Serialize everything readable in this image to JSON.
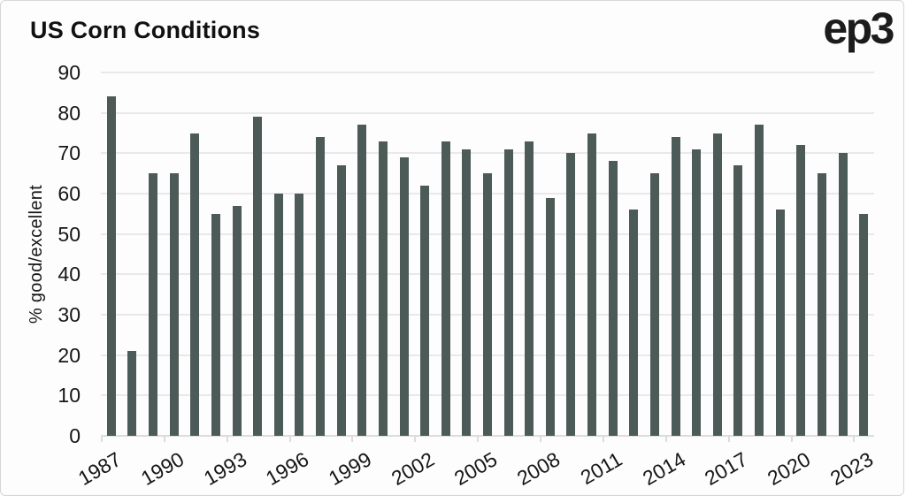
{
  "header": {
    "title": "US Corn Conditions",
    "logo_text": "ep3"
  },
  "chart_data": {
    "type": "bar",
    "title": "US Corn Conditions",
    "xlabel": "",
    "ylabel": "% good/excellent",
    "ylim": [
      0,
      90
    ],
    "y_ticks": [
      0,
      10,
      20,
      30,
      40,
      50,
      60,
      70,
      80,
      90
    ],
    "x_tick_labels": [
      "1987",
      "1990",
      "1993",
      "1996",
      "1999",
      "2002",
      "2005",
      "2008",
      "2011",
      "2014",
      "2017",
      "2020",
      "2023"
    ],
    "categories": [
      1987,
      1988,
      1989,
      1990,
      1991,
      1992,
      1993,
      1994,
      1995,
      1996,
      1997,
      1998,
      1999,
      2000,
      2001,
      2002,
      2003,
      2004,
      2005,
      2006,
      2007,
      2008,
      2009,
      2010,
      2011,
      2012,
      2013,
      2014,
      2015,
      2016,
      2017,
      2018,
      2019,
      2020,
      2021,
      2022,
      2023
    ],
    "values": [
      84,
      21,
      65,
      65,
      75,
      55,
      57,
      79,
      60,
      60,
      74,
      67,
      77,
      73,
      69,
      62,
      73,
      71,
      65,
      71,
      73,
      59,
      70,
      75,
      68,
      56,
      65,
      74,
      71,
      75,
      67,
      77,
      56,
      72,
      65,
      70,
      55
    ],
    "grid": "horizontal",
    "legend": "none",
    "colors": {
      "bar": "#4d5b58",
      "gridline": "#e9e9e9",
      "axis": "#dcdcdc",
      "text": "#161616",
      "title": "#111111",
      "background": "#fdfdfd",
      "border": "#d6d6d6"
    }
  }
}
